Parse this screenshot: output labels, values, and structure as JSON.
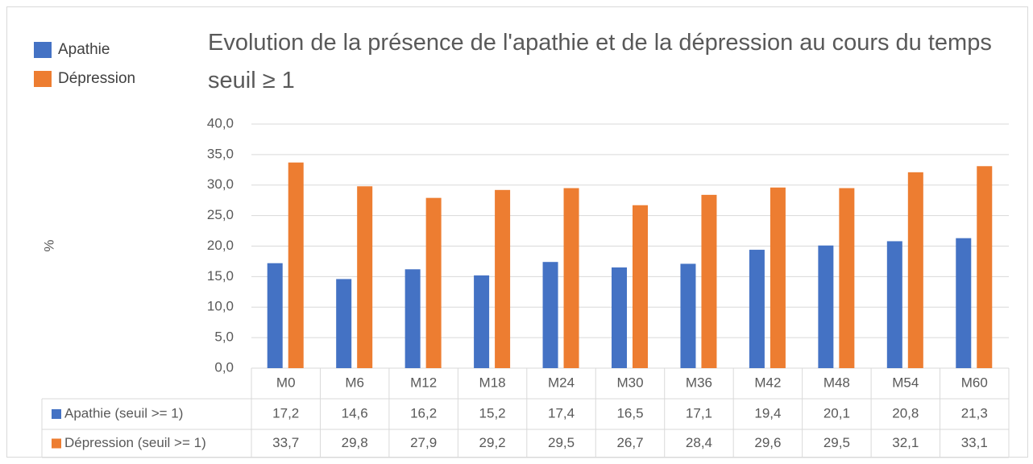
{
  "chart_data": {
    "type": "bar",
    "title": "Evolution de la présence de l'apathie et de la dépression au cours du temps  seuil ≥ 1",
    "y_label": "%",
    "categories": [
      "M0",
      "M6",
      "M12",
      "M18",
      "M24",
      "M30",
      "M36",
      "M42",
      "M48",
      "M54",
      "M60"
    ],
    "series": [
      {
        "name": "Apathie",
        "table_label": "Apathie (seuil >= 1)",
        "color": "#4472c4",
        "values": [
          17.2,
          14.6,
          16.2,
          15.2,
          17.4,
          16.5,
          17.1,
          19.4,
          20.1,
          20.8,
          21.3
        ],
        "value_labels": [
          "17,2",
          "14,6",
          "16,2",
          "15,2",
          "17,4",
          "16,5",
          "17,1",
          "19,4",
          "20,1",
          "20,8",
          "21,3"
        ]
      },
      {
        "name": "Dépression",
        "table_label": "Dépression (seuil >= 1)",
        "color": "#ed7d31",
        "values": [
          33.7,
          29.8,
          27.9,
          29.2,
          29.5,
          26.7,
          28.4,
          29.6,
          29.5,
          32.1,
          33.1
        ],
        "value_labels": [
          "33,7",
          "29,8",
          "27,9",
          "29,2",
          "29,5",
          "26,7",
          "28,4",
          "29,6",
          "29,5",
          "32,1",
          "33,1"
        ]
      }
    ],
    "ylim": [
      0,
      40
    ],
    "yticks": [
      {
        "value": 0,
        "label": "0,0"
      },
      {
        "value": 5,
        "label": "5,0"
      },
      {
        "value": 10,
        "label": "10,0"
      },
      {
        "value": 15,
        "label": "15,0"
      },
      {
        "value": 20,
        "label": "20,0"
      },
      {
        "value": 25,
        "label": "25,0"
      },
      {
        "value": 30,
        "label": "30,0"
      },
      {
        "value": 35,
        "label": "35,0"
      },
      {
        "value": 40,
        "label": "40,0"
      }
    ],
    "grid": true,
    "legend": "top-left"
  }
}
